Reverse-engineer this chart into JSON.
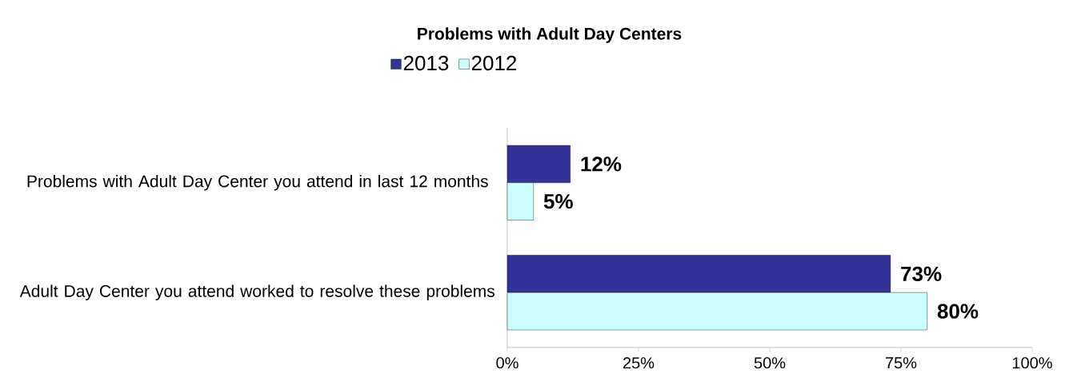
{
  "chart_data": {
    "type": "bar",
    "orientation": "horizontal",
    "title": "Problems with Adult Day Centers",
    "categories": [
      "Problems with Adult Day Center you attend in last 12 months",
      "Adult Day Center you attend worked to resolve these problems"
    ],
    "series": [
      {
        "name": "2013",
        "color": "#333399",
        "values": [
          12,
          73
        ],
        "value_labels": [
          "12%",
          "73%"
        ]
      },
      {
        "name": "2012",
        "color": "#ccffff",
        "values": [
          5,
          80
        ],
        "value_labels": [
          "5%",
          "80%"
        ]
      }
    ],
    "xlim": [
      0,
      100
    ],
    "xticks": [
      {
        "value": 0,
        "label": "0%"
      },
      {
        "value": 25,
        "label": "25%"
      },
      {
        "value": 50,
        "label": "50%"
      },
      {
        "value": 75,
        "label": "75%"
      },
      {
        "value": 100,
        "label": "100%"
      }
    ],
    "legend": "top",
    "grid": false
  }
}
